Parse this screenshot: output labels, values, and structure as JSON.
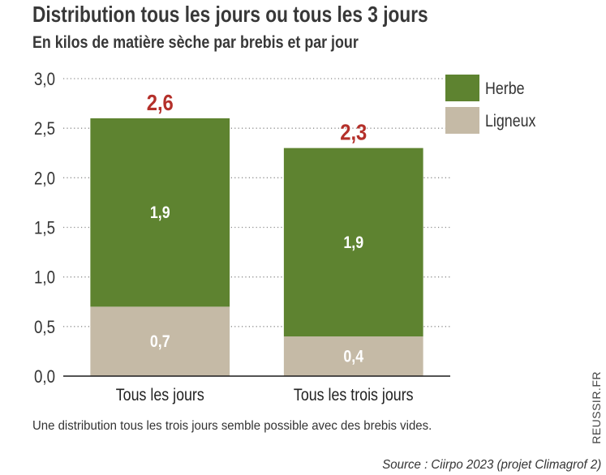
{
  "chart_data": {
    "type": "bar",
    "stacked": true,
    "title": "Distribution tous les jours ou tous les 3 jours",
    "subtitle": "En kilos de matière sèche par brebis et par jour",
    "categories": [
      "Tous les jours",
      "Tous les trois jours"
    ],
    "series": [
      {
        "name": "Ligneux",
        "values": [
          0.7,
          0.4
        ],
        "labels": [
          "0,7",
          "0,4"
        ],
        "color": "#c5baa6"
      },
      {
        "name": "Herbe",
        "values": [
          1.9,
          1.9
        ],
        "labels": [
          "1,9",
          "1,9"
        ],
        "color": "#5e8330"
      }
    ],
    "totals": [
      2.6,
      2.3
    ],
    "total_labels": [
      "2,6",
      "2,3"
    ],
    "total_label_color": "#b4302a",
    "ylim": [
      0,
      3
    ],
    "yticks": [
      0,
      0.5,
      1,
      1.5,
      2,
      2.5,
      3
    ],
    "ytick_labels": [
      "0,0",
      "0,5",
      "1,0",
      "1,5",
      "2,0",
      "2,5",
      "3,0"
    ],
    "grid": true,
    "legend": {
      "placement": "top-right"
    }
  },
  "caption": "Une distribution tous les trois jours semble possible avec des brebis vides.",
  "source": "Source : Ciirpo 2023 (projet Climagrof 2)",
  "watermark": "REUSSIR.FR",
  "colors": {
    "text": "#333333",
    "grid": "#8c8c8c",
    "axis": "#1a1a1a",
    "segment_label": "#ffffff"
  }
}
